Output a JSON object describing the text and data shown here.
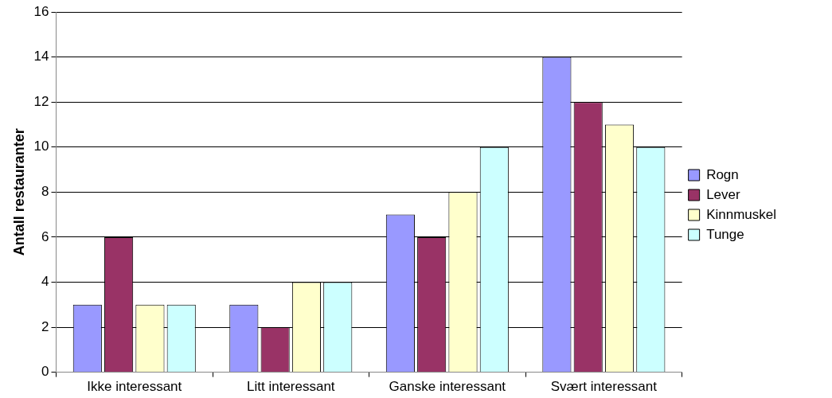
{
  "chart_data": {
    "type": "bar",
    "ylabel": "Antall restauranter",
    "categories": [
      "Ikke interessant",
      "Litt interessant",
      "Ganske interessant",
      "Svært interessant"
    ],
    "series": [
      {
        "name": "Rogn",
        "color": "#9999ff",
        "values": [
          3,
          3,
          7,
          14
        ]
      },
      {
        "name": "Lever",
        "color": "#993366",
        "values": [
          6,
          2,
          6,
          12
        ]
      },
      {
        "name": "Kinnmuskel",
        "color": "#ffffcc",
        "values": [
          3,
          4,
          8,
          11
        ]
      },
      {
        "name": "Tunge",
        "color": "#ccffff",
        "values": [
          3,
          4,
          10,
          10
        ]
      }
    ],
    "ylim": [
      0,
      16
    ],
    "yticks": [
      0,
      2,
      4,
      6,
      8,
      10,
      12,
      14,
      16
    ],
    "grid": "y",
    "legend": "right"
  }
}
